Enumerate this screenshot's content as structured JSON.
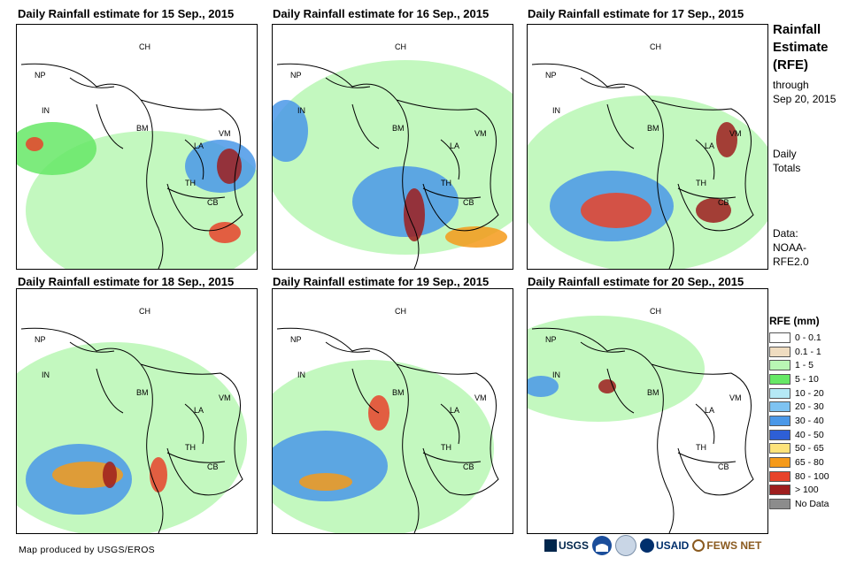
{
  "panels": [
    {
      "title": "Daily Rainfall estimate for 15 Sep., 2015"
    },
    {
      "title": "Daily Rainfall estimate for 16 Sep., 2015"
    },
    {
      "title": "Daily Rainfall estimate for 17 Sep., 2015"
    },
    {
      "title": "Daily Rainfall estimate for 18 Sep., 2015"
    },
    {
      "title": "Daily Rainfall estimate for 19 Sep., 2015"
    },
    {
      "title": "Daily Rainfall estimate for 20 Sep., 2015"
    }
  ],
  "country_labels": [
    "CH",
    "NP",
    "IN",
    "BM",
    "LA",
    "VM",
    "TH",
    "CB"
  ],
  "side": {
    "title_line1": "Rainfall",
    "title_line2": "Estimate",
    "title_line3": "(RFE)",
    "through_line1": "through",
    "through_line2": "Sep 20, 2015",
    "totals_line1": "Daily",
    "totals_line2": "Totals",
    "data_line1": "Data:",
    "data_line2": "NOAA-",
    "data_line3": "RFE2.0"
  },
  "legend": {
    "title": "RFE (mm)",
    "items": [
      {
        "label": "0 - 0.1",
        "color": "#ffffff"
      },
      {
        "label": "0.1 - 1",
        "color": "#efdcc0"
      },
      {
        "label": "1 - 5",
        "color": "#b9f7b4"
      },
      {
        "label": "5 - 10",
        "color": "#66e866"
      },
      {
        "label": "10 - 20",
        "color": "#b5e9f5"
      },
      {
        "label": "20 - 30",
        "color": "#7ec3f2"
      },
      {
        "label": "30 - 40",
        "color": "#4a98e8"
      },
      {
        "label": "40 - 50",
        "color": "#2e5fd6"
      },
      {
        "label": "50 - 65",
        "color": "#fde37a"
      },
      {
        "label": "65 - 80",
        "color": "#f59a1a"
      },
      {
        "label": "80 - 100",
        "color": "#e8432a"
      },
      {
        "label": "> 100",
        "color": "#9e1d1d"
      },
      {
        "label": "No Data",
        "color": "#8c8c8c"
      }
    ]
  },
  "footer": {
    "credit": "Map produced by USGS/EROS"
  },
  "logos": {
    "usgs": "USGS",
    "usaid": "USAID",
    "fewsnet": "FEWS NET"
  }
}
